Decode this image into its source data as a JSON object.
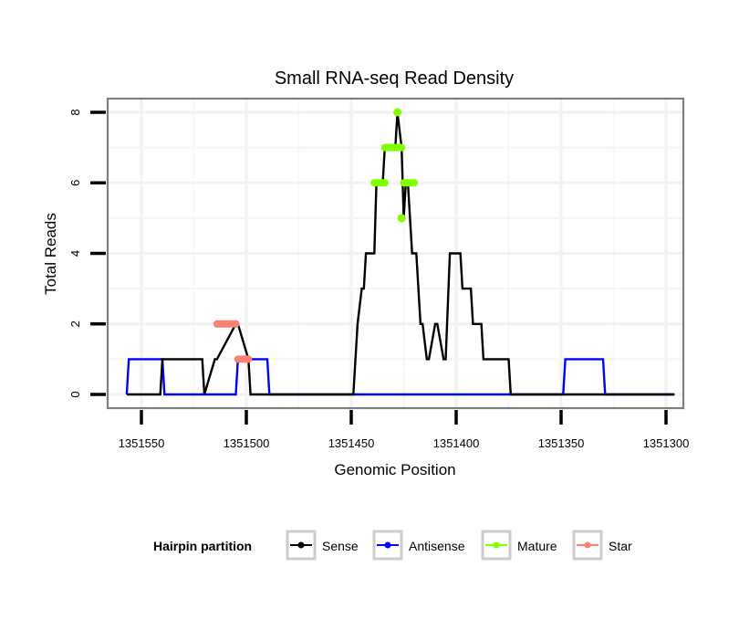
{
  "chart_data": {
    "type": "line",
    "title": "Small RNA-seq Read Density",
    "xlabel": "Genomic Position",
    "ylabel": "Total Reads",
    "x_reversed": true,
    "xlim": [
      1351560,
      1351292
    ],
    "ylim": [
      -0.35,
      8.45
    ],
    "x_ticks": [
      1351550,
      1351500,
      1351450,
      1351400,
      1351350,
      1351300
    ],
    "x_tick_labels": [
      "1351550",
      "1351500",
      "1351450",
      "1351400",
      "1351350",
      "1351300"
    ],
    "y_ticks": [
      0,
      2,
      4,
      6,
      8
    ],
    "y_tick_labels": [
      "0",
      "2",
      "4",
      "6",
      "8"
    ],
    "y_minor_gridlines": [
      1,
      3,
      5,
      7
    ],
    "grid": true,
    "legend": {
      "title": "Hairpin partition",
      "placement": "bottom",
      "entries": [
        {
          "name": "Sense",
          "color": "#000000"
        },
        {
          "name": "Antisense",
          "color": "#0000ff"
        },
        {
          "name": "Mature",
          "color": "#7fff00"
        },
        {
          "name": "Star",
          "color": "#fa8072"
        }
      ]
    },
    "series": [
      {
        "name": "Sense",
        "color": "#000000",
        "x": [
          1351557,
          1351541,
          1351540,
          1351521,
          1351520,
          1351515,
          1351514,
          1351505,
          1351504,
          1351499,
          1351498,
          1351449,
          1351447,
          1351445,
          1351444,
          1351443,
          1351439,
          1351438,
          1351435,
          1351434,
          1351429,
          1351428,
          1351426,
          1351425,
          1351424,
          1351423,
          1351421,
          1351419,
          1351417,
          1351416,
          1351414,
          1351413,
          1351410,
          1351409,
          1351406,
          1351405,
          1351403,
          1351402,
          1351398,
          1351397,
          1351393,
          1351392,
          1351388,
          1351387,
          1351380,
          1351379,
          1351375,
          1351374,
          1351370,
          1351369,
          1351364,
          1351363,
          1351356,
          1351355,
          1351296
        ],
        "y": [
          0,
          0,
          1,
          1,
          0,
          1,
          1,
          2,
          2,
          1,
          0,
          0,
          2,
          3,
          3,
          4,
          4,
          6,
          6,
          7,
          7,
          8,
          7,
          5,
          6,
          6,
          4,
          4,
          2,
          2,
          1,
          1,
          2,
          2,
          1,
          1,
          4,
          4,
          4,
          3,
          3,
          2,
          2,
          1,
          1,
          1,
          1,
          0,
          0,
          0,
          0,
          0,
          0,
          0,
          0
        ]
      },
      {
        "name": "Antisense",
        "color": "#0000ff",
        "x": [
          1351557,
          1351556,
          1351540,
          1351539,
          1351505,
          1351504,
          1351490,
          1351489,
          1351349,
          1351348,
          1351330,
          1351329,
          1351296
        ],
        "y": [
          0,
          1,
          1,
          0,
          0,
          1,
          1,
          0,
          0,
          1,
          1,
          0,
          0
        ]
      },
      {
        "name": "Mature",
        "color": "#7fff00",
        "segments": [
          {
            "x": [
              1351439,
              1351434
            ],
            "y": 6
          },
          {
            "x": [
              1351434,
              1351426
            ],
            "y": 7
          },
          {
            "x": [
              1351428,
              1351428
            ],
            "y": 8
          },
          {
            "x": [
              1351426,
              1351426
            ],
            "y": 5
          },
          {
            "x": [
              1351425,
              1351420
            ],
            "y": 6
          }
        ]
      },
      {
        "name": "Star",
        "color": "#fa8072",
        "segments": [
          {
            "x": [
              1351514,
              1351505
            ],
            "y": 2
          },
          {
            "x": [
              1351504,
              1351499
            ],
            "y": 1
          }
        ]
      }
    ]
  }
}
